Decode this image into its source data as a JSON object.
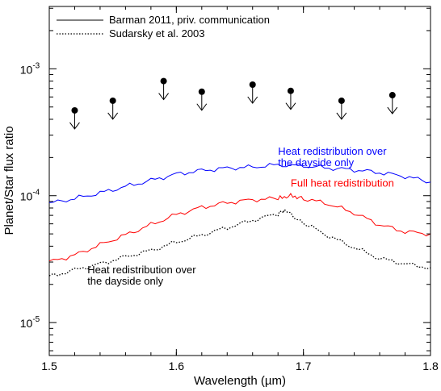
{
  "chart_data": {
    "type": "line",
    "xlabel": "Wavelength (µm)",
    "ylabel": "Planet/Star flux ratio",
    "xlim": [
      1.5,
      1.8
    ],
    "ylim": [
      1e-05,
      0.003
    ],
    "yscale": "log",
    "grid": false,
    "legend_position": "top-left",
    "x_ticks": [
      {
        "value": 1.5,
        "label": "1.5"
      },
      {
        "value": 1.6,
        "label": "1.6"
      },
      {
        "value": 1.7,
        "label": "1.7"
      },
      {
        "value": 1.8,
        "label": "1.8"
      }
    ],
    "y_ticks": [
      {
        "value": 1e-05,
        "base": "10",
        "exp": "-5"
      },
      {
        "value": 0.0001,
        "base": "10",
        "exp": "-4"
      },
      {
        "value": 0.001,
        "base": "10",
        "exp": "-3"
      }
    ],
    "legend": [
      {
        "label": "Barman 2011, priv. communication",
        "style": "solid"
      },
      {
        "label": "Sudarsky et al. 2003",
        "style": "dotted"
      }
    ],
    "series": [
      {
        "color": "#0000ff",
        "style": "solid",
        "x": [
          1.5,
          1.52,
          1.54,
          1.56,
          1.58,
          1.6,
          1.62,
          1.64,
          1.66,
          1.68,
          1.7,
          1.72,
          1.74,
          1.76,
          1.78,
          1.8
        ],
        "y": [
          8.7e-05,
          9.5e-05,
          0.000105,
          0.000118,
          0.000132,
          0.000148,
          0.000158,
          0.000165,
          0.000168,
          0.000175,
          0.000172,
          0.000165,
          0.00016,
          0.000152,
          0.000142,
          0.000128
        ]
      },
      {
        "color": "#ff0000",
        "style": "solid",
        "x": [
          1.5,
          1.52,
          1.54,
          1.56,
          1.58,
          1.6,
          1.62,
          1.64,
          1.66,
          1.68,
          1.69,
          1.7,
          1.72,
          1.74,
          1.76,
          1.78,
          1.8
        ],
        "y": [
          3e-05,
          3.4e-05,
          4.1e-05,
          4.9e-05,
          5.9e-05,
          7.1e-05,
          8.1e-05,
          8.8e-05,
          9.3e-05,
          9.5e-05,
          0.0001,
          9.5e-05,
          8.6e-05,
          7.3e-05,
          5.9e-05,
          5.2e-05,
          5e-05
        ]
      },
      {
        "color": "#000000",
        "style": "dotted",
        "x": [
          1.5,
          1.52,
          1.54,
          1.56,
          1.58,
          1.6,
          1.62,
          1.64,
          1.66,
          1.68,
          1.685,
          1.7,
          1.72,
          1.74,
          1.76,
          1.78,
          1.8
        ],
        "y": [
          2.3e-05,
          2.6e-05,
          2.9e-05,
          3.3e-05,
          3.7e-05,
          4.3e-05,
          4.9e-05,
          5.6e-05,
          6.4e-05,
          7.2e-05,
          7.7e-05,
          6.1e-05,
          4.8e-05,
          3.9e-05,
          3.2e-05,
          2.9e-05,
          2.7e-05
        ]
      }
    ],
    "upper_limits": {
      "x": [
        1.52,
        1.55,
        1.59,
        1.62,
        1.66,
        1.69,
        1.73,
        1.77
      ],
      "y": [
        0.00047,
        0.00056,
        0.0008,
        0.00066,
        0.00075,
        0.00067,
        0.00056,
        0.00062
      ]
    },
    "annotations": [
      {
        "lines": [
          "Heat redistribution over",
          "the dayside only"
        ],
        "color": "#0000ff",
        "x": 1.68,
        "y": 0.00021
      },
      {
        "lines": [
          "Full heat redistribution"
        ],
        "color": "#ff0000",
        "x": 1.69,
        "y": 0.000118
      },
      {
        "lines": [
          "Heat redistribution over",
          "the dayside only"
        ],
        "color": "#000000",
        "x": 1.53,
        "y": 2.45e-05
      }
    ]
  }
}
